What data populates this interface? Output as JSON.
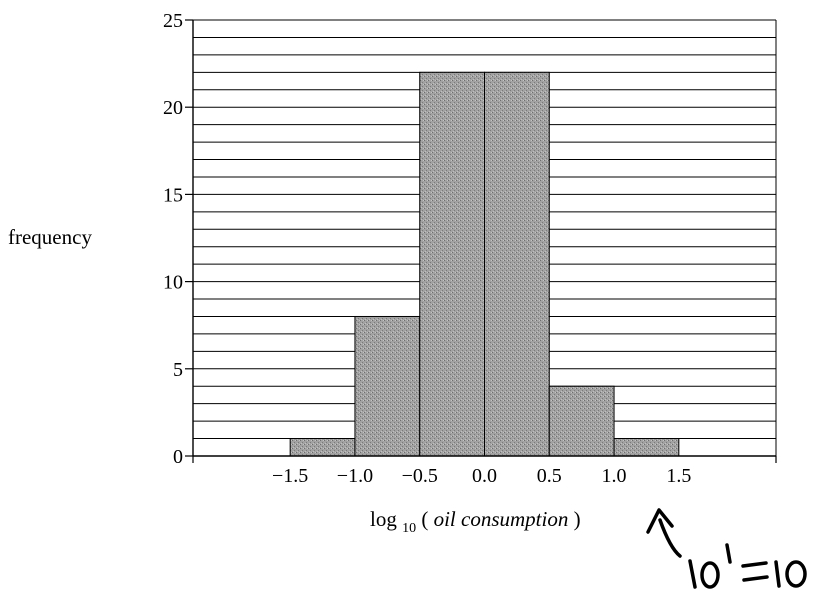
{
  "chart_data": {
    "type": "bar",
    "title": "",
    "ylabel": "frequency",
    "xlabel": {
      "prefix": "log",
      "subscript": "10",
      "open": " (",
      "italic": "oil consumption",
      "close": ")"
    },
    "bins": [
      {
        "from": -1.5,
        "to": -1.0,
        "value": 1
      },
      {
        "from": -1.0,
        "to": -0.5,
        "value": 8
      },
      {
        "from": -0.5,
        "to": 0.0,
        "value": 22
      },
      {
        "from": 0.0,
        "to": 0.5,
        "value": 22
      },
      {
        "from": 0.5,
        "to": 1.0,
        "value": 4
      },
      {
        "from": 1.0,
        "to": 1.5,
        "value": 1
      }
    ],
    "xlim": [
      -2.25,
      2.25
    ],
    "ylim": [
      0,
      25
    ],
    "y_ticks": [
      0,
      5,
      10,
      15,
      20,
      25
    ],
    "y_minor_step": 1,
    "x_ticks": [
      -1.5,
      -1.0,
      -0.5,
      0.0,
      0.5,
      1.0,
      1.5
    ],
    "x_tick_labels": [
      "−1.5",
      "−1.0",
      "−0.5",
      "0.0",
      "0.5",
      "1.0",
      "1.5"
    ],
    "grid": true,
    "bar_color": "#9a9a9a",
    "annotation": {
      "text": "10¹ = 10",
      "points_to_x": 1.0,
      "style": "handwritten arrow"
    }
  }
}
